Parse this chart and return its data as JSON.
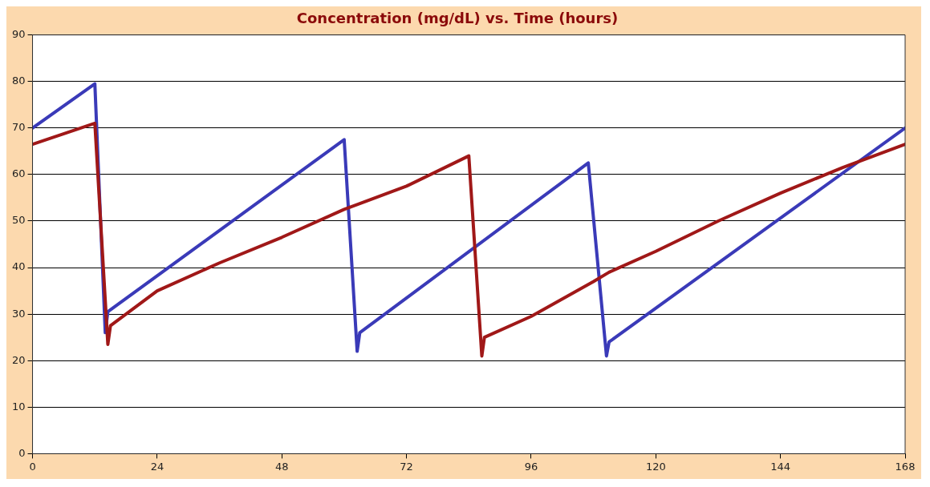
{
  "chart_data": {
    "type": "line",
    "title": "Concentration (mg/dL) vs. Time (hours)",
    "xlim": [
      0,
      168
    ],
    "xticks": [
      0,
      24,
      48,
      72,
      96,
      120,
      144,
      168
    ],
    "ylim": [
      0,
      90
    ],
    "yticks": [
      0,
      10,
      20,
      30,
      40,
      50,
      60,
      70,
      80,
      90
    ],
    "grid": "y",
    "legend": false,
    "marker": "none",
    "line_style": "solid",
    "series": [
      {
        "color": "#a01818",
        "x": [
          0,
          12,
          14.5,
          15,
          24,
          36,
          48,
          60,
          72,
          84,
          86.5,
          87,
          96,
          108,
          111,
          120,
          132,
          144,
          156,
          168
        ],
        "values": [
          66.5,
          71,
          23.5,
          27.5,
          35,
          41,
          46.5,
          52.5,
          57.5,
          64,
          21,
          25,
          29.5,
          37,
          39,
          43.5,
          50,
          56,
          61.5,
          66.5
        ]
      },
      {
        "color": "#3a3ab8",
        "x": [
          0,
          12,
          14,
          14.5,
          60,
          62.5,
          63,
          107,
          110.5,
          111,
          168
        ],
        "values": [
          70,
          79.5,
          26,
          30.5,
          67.5,
          22,
          26,
          62.5,
          21,
          24,
          70
        ]
      }
    ]
  }
}
